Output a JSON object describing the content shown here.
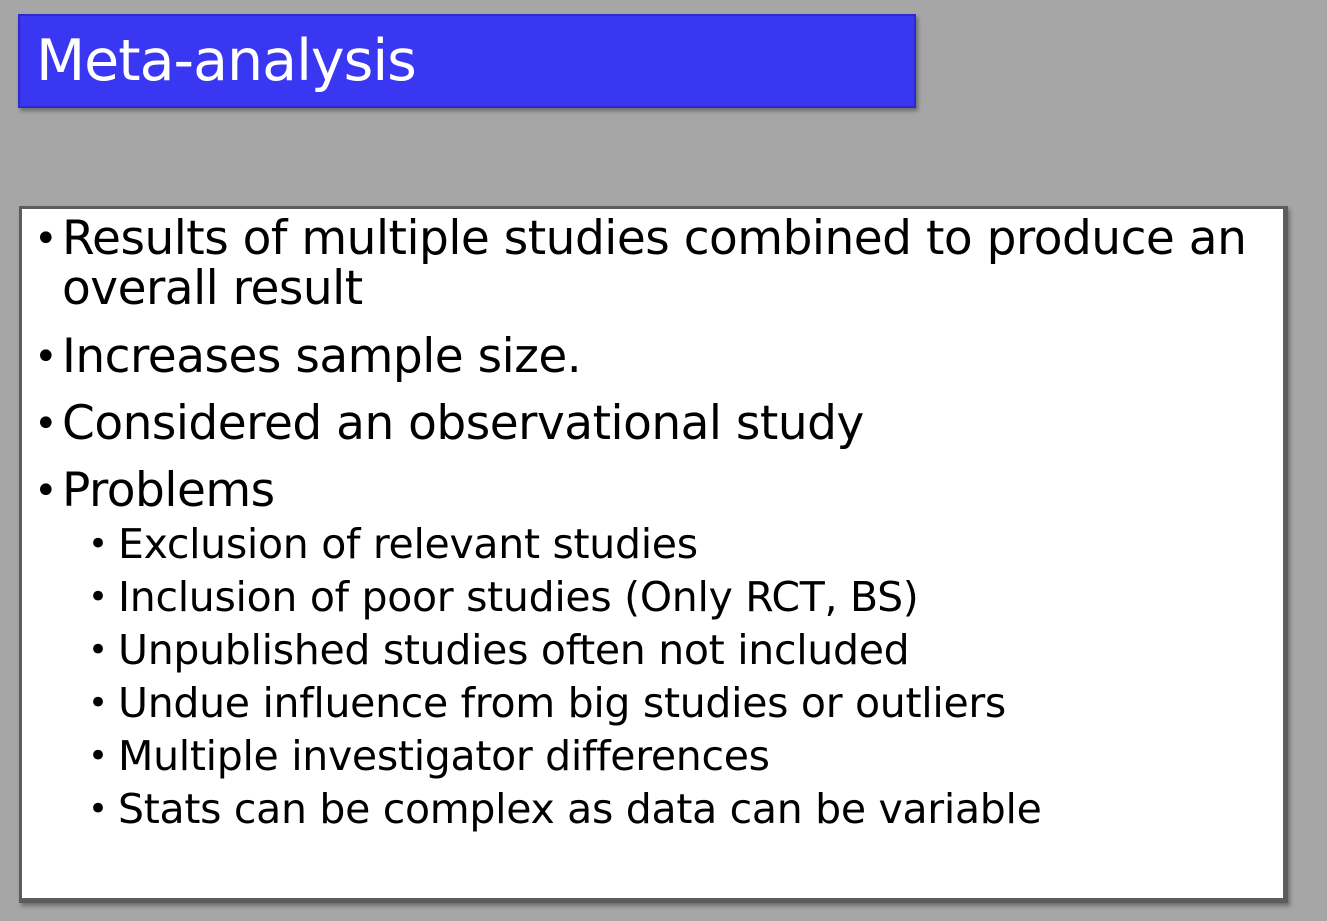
{
  "slide": {
    "title": "Meta-analysis",
    "bullet_glyph": "•",
    "bullets": [
      {
        "text": "Results of multiple studies combined to produce an overall result"
      },
      {
        "text": "Increases sample size."
      },
      {
        "text": "Considered an observational study"
      },
      {
        "text": "Problems"
      }
    ],
    "sub_bullets": [
      {
        "text": "Exclusion of relevant studies"
      },
      {
        "text": "Inclusion of poor studies (Only RCT, BS)"
      },
      {
        "text": "Unpublished studies often not included"
      },
      {
        "text": "Undue influence from big studies or outliers"
      },
      {
        "text": "Multiple investigator differences"
      },
      {
        "text": "Stats can be complex as data can be variable"
      }
    ]
  },
  "colors": {
    "background": "#a6a6a6",
    "title_fill": "#3a37f2",
    "title_text": "#ffffff",
    "content_fill": "#ffffff"
  }
}
